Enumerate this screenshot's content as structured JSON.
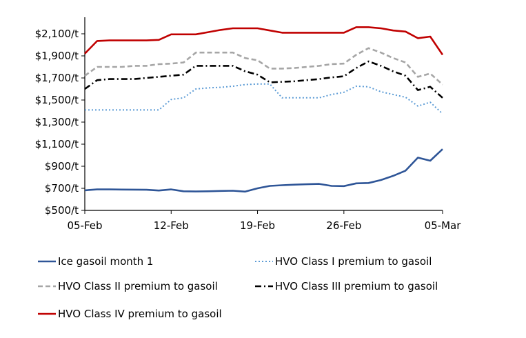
{
  "chart_data": {
    "type": "line",
    "title": "",
    "xlabel": "",
    "ylabel": "",
    "x_tick_labels": [
      "05-Feb",
      "12-Feb",
      "19-Feb",
      "26-Feb",
      "05-Mar"
    ],
    "y_tick_labels": [
      "$500/t",
      "$700/t",
      "$900/t",
      "$1,100/t",
      "$1,300/t",
      "$1,500/t",
      "$1,700/t",
      "$1,900/t",
      "$2,100/t"
    ],
    "ylim": [
      500,
      2250
    ],
    "xlim": [
      "05-Feb",
      "05-Mar"
    ],
    "grid": false,
    "legend_position": "bottom",
    "x": [
      "05-Feb",
      "06-Feb",
      "07-Feb",
      "08-Feb",
      "09-Feb",
      "10-Feb",
      "11-Feb",
      "12-Feb",
      "13-Feb",
      "14-Feb",
      "15-Feb",
      "16-Feb",
      "17-Feb",
      "18-Feb",
      "19-Feb",
      "20-Feb",
      "21-Feb",
      "22-Feb",
      "23-Feb",
      "24-Feb",
      "25-Feb",
      "26-Feb",
      "27-Feb",
      "28-Feb",
      "29-Feb",
      "01-Mar",
      "02-Mar",
      "03-Mar",
      "04-Mar",
      "05-Mar"
    ],
    "series": [
      {
        "name": "Ice gasoil month 1",
        "color": "#2e5597",
        "dash": "solid",
        "values": [
          682,
          690,
          690,
          689,
          688,
          687,
          680,
          690,
          673,
          671,
          673,
          676,
          678,
          670,
          700,
          722,
          728,
          733,
          737,
          740,
          722,
          720,
          745,
          748,
          775,
          813,
          860,
          978,
          950,
          1055
        ]
      },
      {
        "name": "HVO Class I premium to gasoil",
        "color": "#5b9bd5",
        "dash": "dotted",
        "values": [
          1410,
          1410,
          1410,
          1410,
          1410,
          1410,
          1410,
          1505,
          1520,
          1600,
          1610,
          1615,
          1625,
          1640,
          1645,
          1645,
          1520,
          1520,
          1520,
          1520,
          1550,
          1570,
          1625,
          1620,
          1575,
          1550,
          1525,
          1445,
          1480,
          1375
        ]
      },
      {
        "name": "HVO Class II premium to gasoil",
        "color": "#a6a6a6",
        "dash": "dashed",
        "values": [
          1720,
          1800,
          1800,
          1800,
          1810,
          1810,
          1825,
          1830,
          1840,
          1930,
          1930,
          1930,
          1930,
          1880,
          1860,
          1785,
          1785,
          1790,
          1800,
          1810,
          1825,
          1830,
          1910,
          1970,
          1930,
          1880,
          1840,
          1710,
          1740,
          1640
        ]
      },
      {
        "name": "HVO Class III premium to gasoil",
        "color": "#000000",
        "dash": "dashdot",
        "values": [
          1600,
          1680,
          1690,
          1690,
          1690,
          1700,
          1710,
          1720,
          1730,
          1810,
          1810,
          1810,
          1810,
          1760,
          1730,
          1660,
          1665,
          1670,
          1680,
          1690,
          1705,
          1715,
          1790,
          1850,
          1810,
          1760,
          1720,
          1590,
          1620,
          1520
        ]
      },
      {
        "name": "HVO Class IV premium to gasoil",
        "color": "#c00000",
        "dash": "solid",
        "values": [
          1920,
          2035,
          2040,
          2040,
          2040,
          2040,
          2045,
          2095,
          2095,
          2095,
          2115,
          2135,
          2150,
          2150,
          2150,
          2130,
          2110,
          2110,
          2110,
          2110,
          2110,
          2110,
          2160,
          2160,
          2150,
          2130,
          2120,
          2060,
          2075,
          1910
        ]
      }
    ]
  }
}
